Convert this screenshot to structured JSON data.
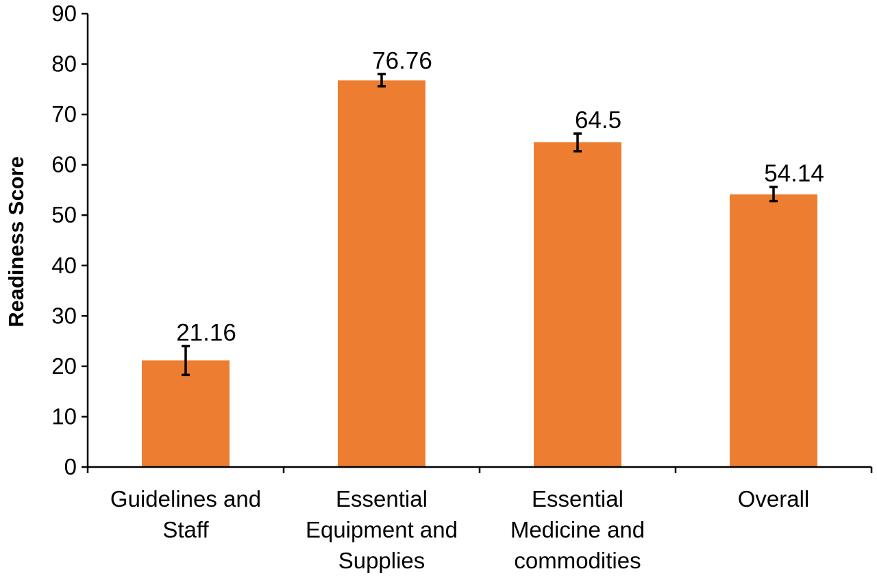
{
  "chart_data": {
    "type": "bar",
    "categories": [
      [
        "Guidelines and",
        "Staff"
      ],
      [
        "Essential",
        "Equipment and",
        "Supplies"
      ],
      [
        "Essential",
        "Medicine and",
        "commodities"
      ],
      [
        "Overall"
      ]
    ],
    "values": [
      21.16,
      76.76,
      64.5,
      54.14
    ],
    "value_labels": [
      "21.16",
      "76.76",
      "64.5",
      "54.14"
    ],
    "error_bars": [
      [
        18.3,
        24.0
      ],
      [
        75.6,
        78.0
      ],
      [
        62.7,
        66.2
      ],
      [
        52.8,
        55.6
      ]
    ],
    "title": "",
    "xlabel": "",
    "ylabel": "Readiness Score",
    "ylim": [
      0,
      90
    ],
    "yticks": [
      0,
      10,
      20,
      30,
      40,
      50,
      60,
      70,
      80,
      90
    ],
    "grid": false,
    "legend": "none",
    "colors": {
      "bar": "#ED7D31",
      "axis": "#000000",
      "error_bar": "#000000"
    }
  }
}
